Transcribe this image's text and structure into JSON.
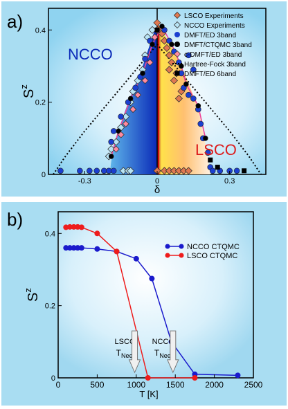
{
  "chart_data": [
    {
      "panel_label": "a)",
      "type": "scatter",
      "xlabel": "δ",
      "ylabel": "S",
      "ylabel_superscript": "z",
      "xlim": [
        -0.45,
        0.45
      ],
      "ylim": [
        0,
        0.46
      ],
      "xticks": [
        -0.3,
        0,
        0.3
      ],
      "yticks": [
        0.2,
        0.4
      ],
      "region_labels": {
        "left": "NCCO",
        "right": "LSCO"
      },
      "legend_position": "top-right",
      "legend": [
        {
          "label": "LSCO Experiments",
          "marker": "diamond",
          "color": "#e07850"
        },
        {
          "label": "NCCO Experiments",
          "marker": "diamond",
          "color": "#b8e4f5"
        },
        {
          "label": "DMFT/ED 3band",
          "marker": "circle",
          "color": "#1b3fd0"
        },
        {
          "label": "DMFT/CTQMC 3band",
          "marker": "circle",
          "color": "#000000"
        },
        {
          "label": "c-DMFT/ED 3band",
          "marker": "diamond",
          "color": "#ff8aa0"
        },
        {
          "label": "Hartree-Fock 3band",
          "marker": "dotted-line",
          "color": "#000000"
        },
        {
          "label": "DMFT/ED 6band",
          "marker": "square",
          "color": "#000000"
        }
      ],
      "series": [
        {
          "name": "LSCO Experiments",
          "points": [
            [
              0.0,
              0.42
            ],
            [
              0.0,
              0.4
            ],
            [
              0.02,
              0.39
            ],
            [
              0.03,
              0.37
            ],
            [
              0.04,
              0.35
            ],
            [
              0.05,
              0.33
            ],
            [
              0.06,
              0.31
            ],
            [
              0.05,
              0.29
            ],
            [
              0.08,
              0.28
            ],
            [
              0.07,
              0.26
            ],
            [
              0.1,
              0.23
            ],
            [
              0.09,
              0.21
            ],
            [
              0.0,
              0.01
            ],
            [
              0.03,
              0.01
            ],
            [
              0.05,
              0.01
            ],
            [
              0.07,
              0.01
            ],
            [
              0.09,
              0.01
            ],
            [
              0.11,
              0.01
            ],
            [
              0.13,
              0.01
            ]
          ]
        },
        {
          "name": "NCCO Experiments",
          "points": [
            [
              -0.02,
              0.4
            ],
            [
              -0.04,
              0.38
            ],
            [
              -0.05,
              0.33
            ],
            [
              -0.06,
              0.29
            ],
            [
              -0.08,
              0.26
            ],
            [
              -0.1,
              0.23
            ],
            [
              -0.11,
              0.2
            ],
            [
              -0.13,
              0.16
            ],
            [
              -0.15,
              0.13
            ],
            [
              -0.17,
              0.09
            ],
            [
              -0.19,
              0.07
            ],
            [
              -0.2,
              0.05
            ],
            [
              -0.14,
              0.01
            ],
            [
              -0.12,
              0.01
            ],
            [
              -0.11,
              0.01
            ]
          ]
        },
        {
          "name": "DMFT/ED 3band",
          "points": [
            [
              -0.4,
              0.01
            ],
            [
              -0.32,
              0.01
            ],
            [
              -0.28,
              0.01
            ],
            [
              -0.25,
              0.01
            ],
            [
              -0.22,
              0.01
            ],
            [
              -0.2,
              0.01
            ],
            [
              -0.18,
              0.01
            ],
            [
              -0.19,
              0.09
            ],
            [
              -0.18,
              0.12
            ],
            [
              -0.15,
              0.16
            ],
            [
              -0.12,
              0.2
            ],
            [
              -0.09,
              0.24
            ],
            [
              -0.07,
              0.27
            ],
            [
              -0.05,
              0.32
            ],
            [
              -0.03,
              0.37
            ],
            [
              0.03,
              0.4
            ],
            [
              0.05,
              0.37
            ],
            [
              0.07,
              0.34
            ],
            [
              0.09,
              0.31
            ],
            [
              0.1,
              0.28
            ],
            [
              0.11,
              0.24
            ],
            [
              0.13,
              0.22
            ],
            [
              0.15,
              0.21
            ],
            [
              0.17,
              0.18
            ],
            [
              0.18,
              0.14
            ],
            [
              0.19,
              0.1
            ],
            [
              0.21,
              0.06
            ],
            [
              0.22,
              0.02
            ],
            [
              0.23,
              0.01
            ],
            [
              0.26,
              0.01
            ],
            [
              0.3,
              0.01
            ],
            [
              0.33,
              0.01
            ],
            [
              0.13,
              0.33
            ],
            [
              0.15,
              0.29
            ]
          ]
        },
        {
          "name": "DMFT/CTQMC 3band",
          "points": [
            [
              -0.19,
              0.05
            ],
            [
              -0.16,
              0.12
            ],
            [
              -0.11,
              0.21
            ],
            [
              -0.06,
              0.28
            ],
            [
              -0.02,
              0.36
            ],
            [
              0.02,
              0.41
            ],
            [
              0.06,
              0.36
            ],
            [
              0.1,
              0.3
            ],
            [
              0.12,
              0.25
            ],
            [
              0.17,
              0.19
            ],
            [
              0.2,
              0.1
            ]
          ]
        },
        {
          "name": "c-DMFT/ED 3band",
          "points": [
            [
              -0.17,
              0.07
            ],
            [
              -0.15,
              0.11
            ],
            [
              -0.13,
              0.14
            ],
            [
              -0.1,
              0.18
            ],
            [
              -0.08,
              0.22
            ],
            [
              -0.05,
              0.26
            ],
            [
              -0.03,
              0.31
            ],
            [
              -0.01,
              0.38
            ]
          ]
        },
        {
          "name": "Hartree-Fock 3band",
          "points": [
            [
              -0.43,
              0.0
            ],
            [
              -0.38,
              0.05
            ],
            [
              -0.3,
              0.12
            ],
            [
              -0.2,
              0.2
            ],
            [
              -0.1,
              0.28
            ],
            [
              0.0,
              0.36
            ],
            [
              0.1,
              0.28
            ],
            [
              0.2,
              0.2
            ],
            [
              0.3,
              0.12
            ],
            [
              0.38,
              0.05
            ],
            [
              0.43,
              0.0
            ]
          ]
        },
        {
          "name": "DMFT/ED 6band",
          "points": [
            [
              0.0,
              0.4
            ],
            [
              0.25,
              0.02
            ],
            [
              0.36,
              0.01
            ],
            [
              0.22,
              0.04
            ]
          ]
        }
      ]
    },
    {
      "panel_label": "b)",
      "type": "line",
      "xlabel": "T [K]",
      "ylabel": "S",
      "ylabel_superscript": "z",
      "xlim": [
        0,
        2500
      ],
      "ylim": [
        0,
        0.46
      ],
      "xticks": [
        0,
        500,
        1000,
        1500,
        2000,
        2500
      ],
      "yticks": [
        0,
        0.2,
        0.4
      ],
      "legend_position": "top-right",
      "series": [
        {
          "name": "NCCO CTQMC",
          "color": "#1a1acc",
          "x": [
            100,
            150,
            200,
            250,
            300,
            500,
            750,
            1000,
            1200,
            1450,
            1750,
            2300
          ],
          "y": [
            0.36,
            0.36,
            0.36,
            0.36,
            0.36,
            0.357,
            0.35,
            0.33,
            0.275,
            0.1,
            0.01,
            0.007
          ]
        },
        {
          "name": "LSCO CTQMC",
          "color": "#ee1c1c",
          "x": [
            100,
            150,
            200,
            250,
            300,
            500,
            750,
            1150,
            1750
          ],
          "y": [
            0.417,
            0.418,
            0.418,
            0.418,
            0.417,
            0.4,
            0.35,
            0.0,
            0.0
          ]
        }
      ],
      "annotations": [
        {
          "text": "LSCO",
          "sub_main": "T",
          "sub": "Neel",
          "arrow_x": 980
        },
        {
          "text": "NCCO",
          "sub_main": "T",
          "sub": "Neel",
          "arrow_x": 1470
        }
      ]
    }
  ]
}
